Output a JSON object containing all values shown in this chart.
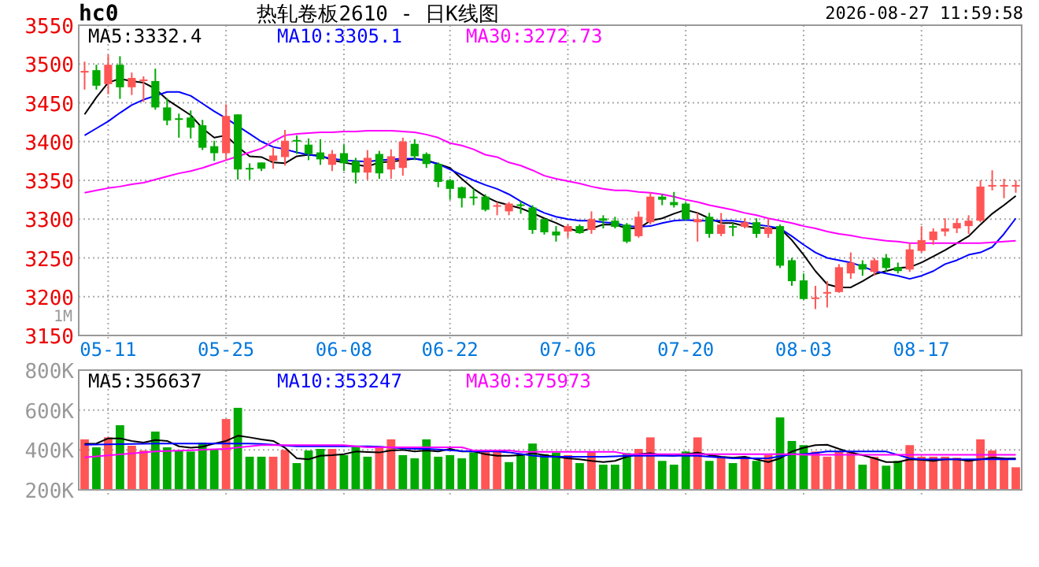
{
  "chart_data": [
    {
      "type": "candlestick",
      "title": "热轧卷板2610 - 日K线图",
      "annotations": [
        "hc0",
        "2026-08-27 11:59:58",
        "1M"
      ],
      "categories": [
        null,
        null,
        "05-11",
        null,
        null,
        null,
        null,
        null,
        null,
        null,
        null,
        null,
        "05-25",
        null,
        null,
        null,
        null,
        null,
        null,
        null,
        null,
        null,
        "06-08",
        null,
        null,
        null,
        null,
        null,
        null,
        null,
        null,
        "06-22",
        null,
        null,
        null,
        null,
        null,
        null,
        null,
        null,
        null,
        "07-06",
        null,
        null,
        null,
        null,
        null,
        null,
        null,
        null,
        null,
        "07-20",
        null,
        null,
        null,
        null,
        null,
        null,
        null,
        null,
        null,
        "08-03",
        null,
        null,
        null,
        null,
        null,
        null,
        null,
        null,
        null,
        "08-17",
        null,
        null,
        null,
        null,
        null,
        null,
        null,
        null
      ],
      "ohlc": [
        [
          3489,
          3503,
          3467,
          3491
        ],
        [
          3492,
          3499,
          3467,
          3472
        ],
        [
          3474,
          3512,
          3461,
          3499
        ],
        [
          3499,
          3510,
          3455,
          3470
        ],
        [
          3470,
          3489,
          3460,
          3482
        ],
        [
          3478,
          3484,
          3451,
          3480
        ],
        [
          3478,
          3494,
          3441,
          3444
        ],
        [
          3444,
          3456,
          3421,
          3427
        ],
        [
          3430,
          3436,
          3405,
          3428
        ],
        [
          3431,
          3440,
          3404,
          3418
        ],
        [
          3421,
          3428,
          3389,
          3392
        ],
        [
          3394,
          3401,
          3375,
          3385
        ],
        [
          3385,
          3448,
          3376,
          3433
        ],
        [
          3435,
          3435,
          3351,
          3364
        ],
        [
          3366,
          3372,
          3351,
          3364
        ],
        [
          3373,
          3373,
          3362,
          3365
        ],
        [
          3375,
          3392,
          3365,
          3382
        ],
        [
          3380,
          3415,
          3369,
          3401
        ],
        [
          3402,
          3408,
          3384,
          3401
        ],
        [
          3396,
          3404,
          3376,
          3384
        ],
        [
          3386,
          3403,
          3370,
          3377
        ],
        [
          3370,
          3389,
          3362,
          3384
        ],
        [
          3385,
          3396,
          3362,
          3372
        ],
        [
          3375,
          3379,
          3346,
          3360
        ],
        [
          3360,
          3389,
          3351,
          3379
        ],
        [
          3384,
          3388,
          3352,
          3359
        ],
        [
          3364,
          3390,
          3352,
          3381
        ],
        [
          3366,
          3405,
          3356,
          3400
        ],
        [
          3397,
          3403,
          3376,
          3381
        ],
        [
          3384,
          3386,
          3366,
          3371
        ],
        [
          3371,
          3373,
          3341,
          3348
        ],
        [
          3350,
          3352,
          3325,
          3339
        ],
        [
          3341,
          3342,
          3315,
          3327
        ],
        [
          3329,
          3339,
          3318,
          3327
        ],
        [
          3329,
          3332,
          3310,
          3312
        ],
        [
          3316,
          3322,
          3305,
          3318
        ],
        [
          3310,
          3322,
          3305,
          3320
        ],
        [
          3319,
          3323,
          3307,
          3317
        ],
        [
          3315,
          3318,
          3281,
          3286
        ],
        [
          3300,
          3301,
          3280,
          3283
        ],
        [
          3284,
          3291,
          3271,
          3279
        ],
        [
          3284,
          3293,
          3276,
          3291
        ],
        [
          3291,
          3293,
          3281,
          3282
        ],
        [
          3286,
          3310,
          3281,
          3300
        ],
        [
          3301,
          3305,
          3288,
          3298
        ],
        [
          3298,
          3303,
          3288,
          3290
        ],
        [
          3293,
          3295,
          3269,
          3271
        ],
        [
          3278,
          3310,
          3276,
          3303
        ],
        [
          3296,
          3334,
          3293,
          3329
        ],
        [
          3329,
          3332,
          3318,
          3325
        ],
        [
          3322,
          3335,
          3315,
          3318
        ],
        [
          3320,
          3322,
          3298,
          3300
        ],
        [
          3296,
          3308,
          3271,
          3300
        ],
        [
          3303,
          3308,
          3276,
          3281
        ],
        [
          3281,
          3308,
          3278,
          3293
        ],
        [
          3291,
          3295,
          3278,
          3289
        ],
        [
          3290,
          3301,
          3288,
          3296
        ],
        [
          3296,
          3301,
          3276,
          3281
        ],
        [
          3281,
          3301,
          3276,
          3289
        ],
        [
          3291,
          3293,
          3237,
          3240
        ],
        [
          3247,
          3250,
          3214,
          3220
        ],
        [
          3221,
          3230,
          3196,
          3197
        ],
        [
          3197,
          3214,
          3184,
          3199
        ],
        [
          3204,
          3220,
          3186,
          3206
        ],
        [
          3206,
          3242,
          3205,
          3238
        ],
        [
          3230,
          3257,
          3223,
          3244
        ],
        [
          3242,
          3247,
          3227,
          3235
        ],
        [
          3232,
          3250,
          3227,
          3247
        ],
        [
          3250,
          3255,
          3232,
          3237
        ],
        [
          3238,
          3244,
          3230,
          3233
        ],
        [
          3235,
          3269,
          3232,
          3261
        ],
        [
          3259,
          3291,
          3257,
          3273
        ],
        [
          3273,
          3288,
          3267,
          3284
        ],
        [
          3284,
          3301,
          3278,
          3288
        ],
        [
          3288,
          3301,
          3282,
          3295
        ],
        [
          3291,
          3305,
          3281,
          3298
        ],
        [
          3298,
          3350,
          3296,
          3342
        ],
        [
          3342,
          3363,
          3337,
          3344
        ],
        [
          3342,
          3352,
          3327,
          3344
        ],
        [
          3343,
          3350,
          3334,
          3344
        ]
      ],
      "colors": [
        "#ff5555",
        "#00aa00",
        "#ff5555",
        "#00aa00",
        "#ff5555",
        "#ff5555",
        "#00aa00",
        "#00aa00",
        "#00aa00",
        "#00aa00",
        "#00aa00",
        "#00aa00",
        "#ff5555",
        "#00aa00",
        "#00aa00",
        "#00aa00",
        "#ff5555",
        "#ff5555",
        "#00aa00",
        "#00aa00",
        "#00aa00",
        "#ff5555",
        "#00aa00",
        "#00aa00",
        "#ff5555",
        "#00aa00",
        "#ff5555",
        "#ff5555",
        "#00aa00",
        "#00aa00",
        "#00aa00",
        "#00aa00",
        "#00aa00",
        "#00aa00",
        "#00aa00",
        "#ff5555",
        "#ff5555",
        "#00aa00",
        "#00aa00",
        "#00aa00",
        "#00aa00",
        "#ff5555",
        "#00aa00",
        "#ff5555",
        "#00aa00",
        "#00aa00",
        "#00aa00",
        "#ff5555",
        "#ff5555",
        "#00aa00",
        "#00aa00",
        "#00aa00",
        "#ff5555",
        "#00aa00",
        "#ff5555",
        "#00aa00",
        "#ff5555",
        "#00aa00",
        "#ff5555",
        "#00aa00",
        "#00aa00",
        "#00aa00",
        "#ff5555",
        "#ff5555",
        "#ff5555",
        "#ff5555",
        "#00aa00",
        "#ff5555",
        "#00aa00",
        "#00aa00",
        "#ff5555",
        "#ff5555",
        "#ff5555",
        "#ff5555",
        "#ff5555",
        "#ff5555",
        "#ff5555",
        "#ff5555",
        "#ff5555",
        "#ff5555"
      ],
      "ylim": [
        3150,
        3550
      ],
      "yticks": [
        3150,
        3200,
        3250,
        3300,
        3350,
        3400,
        3450,
        3500,
        3550
      ],
      "grid": true,
      "legend": "top left",
      "series": [
        {
          "type": "line",
          "name": "MA5:3332.4",
          "color": "#000000",
          "values": [
            3435,
            3457,
            3476,
            3481,
            3478,
            3476,
            3468,
            3454,
            3444,
            3434,
            3417,
            3405,
            3408,
            3393,
            3381,
            3380,
            3373,
            3372,
            3381,
            3383,
            3382,
            3376,
            3373,
            3370,
            3368,
            3373,
            3374,
            3376,
            3378,
            3376,
            3371,
            3366,
            3352,
            3339,
            3329,
            3322,
            3318,
            3314,
            3308,
            3301,
            3295,
            3288,
            3284,
            3288,
            3293,
            3293,
            3288,
            3288,
            3298,
            3301,
            3307,
            3312,
            3308,
            3301,
            3295,
            3295,
            3291,
            3289,
            3288,
            3288,
            3273,
            3254,
            3233,
            3216,
            3212,
            3212,
            3220,
            3229,
            3233,
            3237,
            3238,
            3244,
            3252,
            3260,
            3269,
            3278,
            3293,
            3307,
            3318,
            3330
          ]
        },
        {
          "type": "line",
          "name": "MA10:3305.1",
          "color": "#0000ff",
          "values": [
            3408,
            3417,
            3426,
            3437,
            3447,
            3454,
            3459,
            3464,
            3464,
            3459,
            3449,
            3439,
            3430,
            3420,
            3410,
            3400,
            3393,
            3390,
            3386,
            3383,
            3381,
            3378,
            3376,
            3375,
            3374,
            3376,
            3377,
            3378,
            3378,
            3375,
            3371,
            3364,
            3357,
            3350,
            3344,
            3339,
            3332,
            3323,
            3315,
            3308,
            3303,
            3300,
            3298,
            3298,
            3296,
            3295,
            3291,
            3290,
            3291,
            3295,
            3298,
            3299,
            3298,
            3298,
            3298,
            3298,
            3296,
            3293,
            3291,
            3288,
            3278,
            3267,
            3257,
            3250,
            3247,
            3244,
            3239,
            3233,
            3230,
            3227,
            3223,
            3227,
            3233,
            3242,
            3247,
            3254,
            3257,
            3264,
            3281,
            3301
          ]
        },
        {
          "type": "line",
          "name": "MA30:3272.73",
          "color": "#ff00ff",
          "values": [
            3334,
            3337,
            3340,
            3342,
            3345,
            3347,
            3351,
            3355,
            3359,
            3362,
            3366,
            3371,
            3376,
            3381,
            3386,
            3391,
            3400,
            3408,
            3410,
            3411,
            3412,
            3412,
            3413,
            3413,
            3414,
            3414,
            3414,
            3413,
            3412,
            3409,
            3405,
            3398,
            3395,
            3390,
            3383,
            3380,
            3373,
            3369,
            3363,
            3356,
            3352,
            3349,
            3346,
            3342,
            3339,
            3337,
            3337,
            3335,
            3334,
            3332,
            3329,
            3325,
            3322,
            3318,
            3315,
            3312,
            3308,
            3305,
            3301,
            3298,
            3295,
            3291,
            3288,
            3284,
            3281,
            3279,
            3276,
            3274,
            3272,
            3271,
            3269,
            3269,
            3269,
            3269,
            3269,
            3269,
            3269,
            3270,
            3271,
            3272
          ]
        }
      ]
    },
    {
      "type": "bar",
      "tick_labels": "y",
      "categories": [
        null,
        null,
        null,
        null,
        null,
        null,
        null,
        null,
        null,
        null,
        null,
        null,
        null,
        null,
        null,
        null,
        null,
        null,
        null,
        null,
        null,
        null,
        null,
        null,
        null,
        null,
        null,
        null,
        null,
        null,
        null,
        null,
        null,
        null,
        null,
        null,
        null,
        null,
        null,
        null,
        null,
        null,
        null,
        null,
        null,
        null,
        null,
        null,
        null,
        null,
        null,
        null,
        null,
        null,
        null,
        null,
        null,
        null,
        null,
        null,
        null,
        null,
        null,
        null,
        null,
        null,
        null,
        null,
        null,
        null,
        null,
        null,
        null,
        null,
        null,
        null,
        null,
        null,
        null,
        null
      ],
      "values": [
        453,
        413,
        463,
        524,
        421,
        397,
        492,
        413,
        397,
        392,
        437,
        405,
        555,
        611,
        366,
        366,
        366,
        400,
        334,
        397,
        405,
        405,
        374,
        413,
        366,
        418,
        453,
        374,
        358,
        453,
        366,
        374,
        358,
        387,
        397,
        397,
        339,
        379,
        432,
        379,
        387,
        374,
        334,
        392,
        326,
        326,
        384,
        405,
        463,
        345,
        326,
        392,
        463,
        345,
        366,
        334,
        366,
        345,
        374,
        563,
        445,
        424,
        392,
        366,
        392,
        392,
        326,
        366,
        321,
        345,
        424,
        366,
        366,
        366,
        361,
        353,
        453,
        397,
        353,
        313
      ],
      "colors": [
        "#ff5555",
        "#00aa00",
        "#ff5555",
        "#00aa00",
        "#ff5555",
        "#ff5555",
        "#00aa00",
        "#00aa00",
        "#00aa00",
        "#00aa00",
        "#00aa00",
        "#00aa00",
        "#ff5555",
        "#00aa00",
        "#00aa00",
        "#00aa00",
        "#ff5555",
        "#ff5555",
        "#00aa00",
        "#00aa00",
        "#00aa00",
        "#ff5555",
        "#00aa00",
        "#00aa00",
        "#00aa00",
        "#ff5555",
        "#ff5555",
        "#00aa00",
        "#00aa00",
        "#00aa00",
        "#00aa00",
        "#00aa00",
        "#00aa00",
        "#00aa00",
        "#ff5555",
        "#ff5555",
        "#00aa00",
        "#00aa00",
        "#00aa00",
        "#00aa00",
        "#00aa00",
        "#ff5555",
        "#00aa00",
        "#ff5555",
        "#00aa00",
        "#00aa00",
        "#00aa00",
        "#ff5555",
        "#ff5555",
        "#00aa00",
        "#00aa00",
        "#00aa00",
        "#ff5555",
        "#00aa00",
        "#ff5555",
        "#00aa00",
        "#ff5555",
        "#00aa00",
        "#ff5555",
        "#00aa00",
        "#00aa00",
        "#00aa00",
        "#ff5555",
        "#ff5555",
        "#ff5555",
        "#ff5555",
        "#00aa00",
        "#ff5555",
        "#00aa00",
        "#00aa00",
        "#ff5555",
        "#ff5555",
        "#ff5555",
        "#ff5555",
        "#ff5555",
        "#ff5555",
        "#ff5555",
        "#ff5555",
        "#ff5555",
        "#ff5555"
      ],
      "ylim": [
        200,
        800
      ],
      "yticks": [
        {
          "value": 200,
          "label": "200K"
        },
        {
          "value": 400,
          "label": "400K"
        },
        {
          "value": 600,
          "label": "600K"
        },
        {
          "value": 800,
          "label": "800K"
        }
      ],
      "grid": true,
      "legend": "top left",
      "series": [
        {
          "type": "line",
          "name": "MA5:356637",
          "color": "#000000",
          "values": [
            430,
            432,
            458,
            458,
            445,
            437,
            450,
            445,
            418,
            411,
            416,
            432,
            445,
            471,
            463,
            453,
            445,
            411,
            358,
            353,
            371,
            374,
            379,
            392,
            389,
            387,
            397,
            400,
            392,
            397,
            392,
            405,
            392,
            392,
            379,
            371,
            371,
            374,
            384,
            374,
            366,
            358,
            353,
            345,
            339,
            345,
            366,
            379,
            384,
            374,
            371,
            379,
            387,
            374,
            366,
            361,
            366,
            353,
            339,
            358,
            392,
            411,
            424,
            426,
            405,
            387,
            374,
            358,
            339,
            339,
            353,
            350,
            345,
            353,
            353,
            345,
            353,
            361,
            358,
            357
          ]
        },
        {
          "type": "line",
          "name": "MA10:353247",
          "color": "#0000ff",
          "values": [
            426,
            427,
            428,
            429,
            430,
            431,
            432,
            432,
            432,
            432,
            432,
            432,
            432,
            432,
            432,
            430,
            426,
            422,
            418,
            418,
            418,
            418,
            418,
            418,
            418,
            416,
            412,
            408,
            405,
            405,
            402,
            398,
            394,
            392,
            392,
            392,
            388,
            380,
            372,
            366,
            366,
            366,
            366,
            366,
            366,
            368,
            371,
            371,
            371,
            371,
            371,
            371,
            371,
            366,
            362,
            358,
            358,
            358,
            358,
            368,
            379,
            379,
            385,
            392,
            392,
            392,
            392,
            392,
            392,
            375,
            358,
            353,
            353,
            353,
            353,
            353,
            353,
            353,
            353,
            353
          ]
        },
        {
          "type": "line",
          "name": "MA30:375973",
          "color": "#ff00ff",
          "values": [
            363,
            368,
            373,
            378,
            383,
            387,
            392,
            394,
            396,
            398,
            401,
            403,
            405,
            412,
            418,
            424,
            424,
            424,
            424,
            424,
            424,
            424,
            424,
            418,
            413,
            413,
            413,
            413,
            413,
            413,
            413,
            413,
            413,
            397,
            397,
            397,
            397,
            390,
            390,
            390,
            390,
            390,
            390,
            390,
            390,
            390,
            379,
            379,
            379,
            379,
            379,
            379,
            379,
            379,
            379,
            379,
            379,
            379,
            379,
            379,
            379,
            376,
            376,
            376,
            376,
            376,
            376,
            376,
            376,
            376,
            376,
            376,
            376,
            376,
            376,
            376,
            376,
            376,
            376,
            376
          ]
        }
      ]
    }
  ]
}
